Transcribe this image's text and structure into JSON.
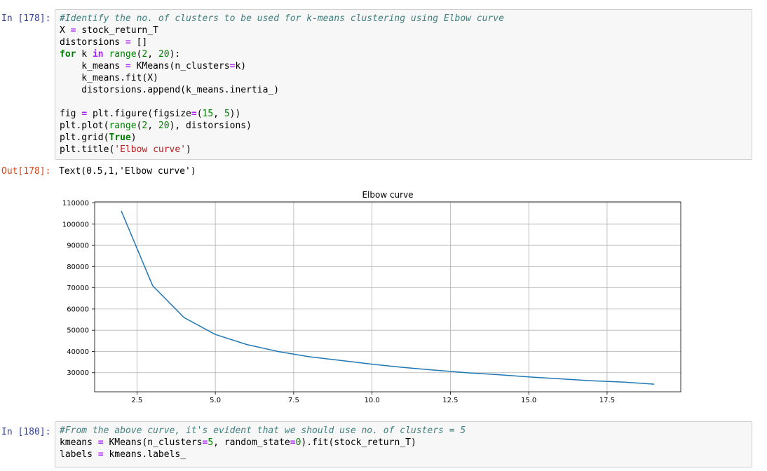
{
  "cells": {
    "cell1": {
      "prompt_in": "In [178]:",
      "prompt_out": "Out[178]:",
      "lines": {
        "l1_comment": "#Identify the no. of clusters to be used for k-means clustering using Elbow curve",
        "l2_a": "X ",
        "l2_op": "=",
        "l2_b": " stock_return_T",
        "l3_a": "distorsions ",
        "l3_op": "=",
        "l3_b": " []",
        "l4_kw1": "for",
        "l4_a": " k ",
        "l4_kw2": "in",
        "l4_sp": " ",
        "l4_bi": "range",
        "l4_b": "(",
        "l4_n1": "2",
        "l4_c": ", ",
        "l4_n2": "20",
        "l4_d": "):",
        "l5_a": "    k_means ",
        "l5_op": "=",
        "l5_b": " KMeans(n_clusters",
        "l5_op2": "=",
        "l5_c": "k)",
        "l6": "    k_means.fit(X)",
        "l7": "    distorsions.append(k_means.inertia_)",
        "l9_a": "fig ",
        "l9_op": "=",
        "l9_b": " plt.figure(figsize",
        "l9_op2": "=",
        "l9_c": "(",
        "l9_n1": "15",
        "l9_d": ", ",
        "l9_n2": "5",
        "l9_e": "))",
        "l10_a": "plt.plot(",
        "l10_bi": "range",
        "l10_b": "(",
        "l10_n1": "2",
        "l10_c": ", ",
        "l10_n2": "20",
        "l10_d": "), distorsions)",
        "l11_a": "plt.grid(",
        "l11_kw": "True",
        "l11_b": ")",
        "l12_a": "plt.title(",
        "l12_str": "'Elbow curve'",
        "l12_b": ")"
      },
      "output_text": "Text(0.5,1,'Elbow curve')"
    },
    "cell2": {
      "prompt_in": "In [180]:",
      "lines": {
        "l1_comment": "#From the above curve, it's evident that we should use no. of clusters = 5",
        "l2_a": "kmeans ",
        "l2_op": "=",
        "l2_b": " KMeans(n_clusters",
        "l2_op2": "=",
        "l2_n1": "5",
        "l2_c": ", random_state",
        "l2_op3": "=",
        "l2_n2": "0",
        "l2_d": ").fit(stock_return_T)",
        "l3_a": "labels ",
        "l3_op": "=",
        "l3_b": " kmeans.labels_"
      }
    }
  },
  "chart_data": {
    "type": "line",
    "title": "Elbow curve",
    "xlabel": "",
    "ylabel": "",
    "grid": true,
    "xlim": [
      1.15,
      19.85
    ],
    "ylim": [
      21000,
      110500
    ],
    "x_ticks": [
      2.5,
      5.0,
      7.5,
      10.0,
      12.5,
      15.0,
      17.5
    ],
    "x_tick_labels": [
      "2.5",
      "5.0",
      "7.5",
      "10.0",
      "12.5",
      "15.0",
      "17.5"
    ],
    "y_ticks": [
      30000,
      40000,
      50000,
      60000,
      70000,
      80000,
      90000,
      100000,
      110000
    ],
    "y_tick_labels": [
      "30000",
      "40000",
      "50000",
      "60000",
      "70000",
      "80000",
      "90000",
      "100000",
      "110000"
    ],
    "line_color": "#1f77b4",
    "x": [
      2,
      3,
      4,
      5,
      6,
      7,
      8,
      9,
      10,
      11,
      12,
      13,
      14,
      15,
      16,
      17,
      18,
      19
    ],
    "y": [
      106200,
      71000,
      56000,
      48000,
      43300,
      40000,
      37500,
      35800,
      34000,
      32500,
      31200,
      30000,
      29100,
      28000,
      27100,
      26200,
      25600,
      24600
    ]
  }
}
